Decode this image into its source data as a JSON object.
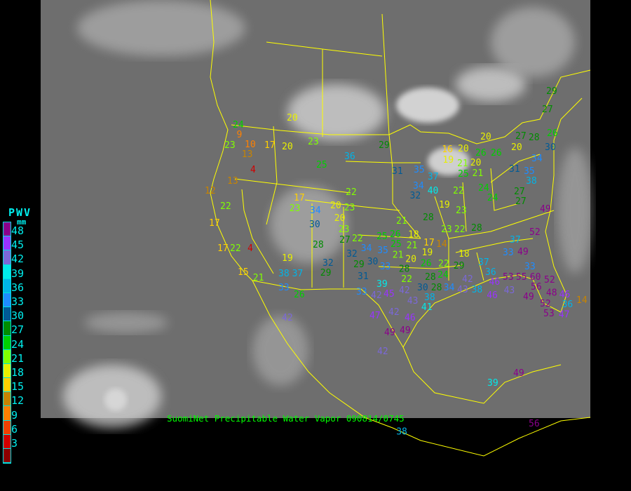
{
  "caption": "SuomiNet Precipitable Water Vapor 090814/0745",
  "legend": {
    "title": "PWV",
    "unit": "mm",
    "labels": [
      "48",
      "45",
      "42",
      "39",
      "36",
      "33",
      "30",
      "27",
      "24",
      "21",
      "18",
      "15",
      "12",
      "9",
      "6",
      "3"
    ],
    "colors": [
      "#8b008b",
      "#9933ff",
      "#7b68d8",
      "#00eaea",
      "#00b4e8",
      "#1e8cff",
      "#005a96",
      "#008c00",
      "#00d000",
      "#80ff00",
      "#e8f000",
      "#ffd000",
      "#c88400",
      "#ff8000",
      "#f04000",
      "#d00000",
      "#8b0000"
    ]
  },
  "colors": {
    "background": "#000000",
    "map_lines": "#ffff00",
    "caption": "#00ff00",
    "legend_text": "#00f0f0"
  },
  "stations": [
    "20",
    "24",
    "9",
    "23",
    "10",
    "13",
    "17",
    "20",
    "23",
    "36",
    "25",
    "29",
    "4",
    "13",
    "12",
    "22",
    "17",
    "23",
    "22",
    "20",
    "23",
    "20",
    "30",
    "23",
    "27",
    "17",
    "17",
    "22",
    "4",
    "28",
    "19",
    "32",
    "29",
    "38",
    "37",
    "15",
    "21",
    "33",
    "26",
    "29",
    "30",
    "31",
    "33",
    "33",
    "39",
    "42",
    "45",
    "42",
    "43",
    "42",
    "47",
    "46",
    "49",
    "49",
    "42",
    "41",
    "38",
    "30",
    "28",
    "34",
    "42",
    "43",
    "38",
    "31",
    "35",
    "37",
    "34",
    "32",
    "40",
    "19",
    "28",
    "21",
    "23",
    "22",
    "23",
    "22",
    "24",
    "24",
    "27",
    "27",
    "17",
    "14",
    "18",
    "22",
    "28",
    "24",
    "29",
    "37",
    "36",
    "33",
    "37",
    "49",
    "52",
    "49",
    "28",
    "25",
    "21",
    "20",
    "19",
    "20",
    "16",
    "21",
    "26",
    "26",
    "20",
    "27",
    "20",
    "28",
    "31",
    "35",
    "38",
    "34",
    "29",
    "27",
    "26",
    "30",
    "25",
    "26",
    "25",
    "21",
    "21",
    "20",
    "28",
    "19",
    "26",
    "22",
    "18",
    "22",
    "34",
    "35",
    "32",
    "33",
    "53",
    "55",
    "60",
    "56",
    "52",
    "49",
    "48",
    "52",
    "53",
    "46",
    "36",
    "47",
    "46",
    "43",
    "46",
    "49",
    "39",
    "56",
    "42",
    "38",
    "14",
    "34"
  ]
}
